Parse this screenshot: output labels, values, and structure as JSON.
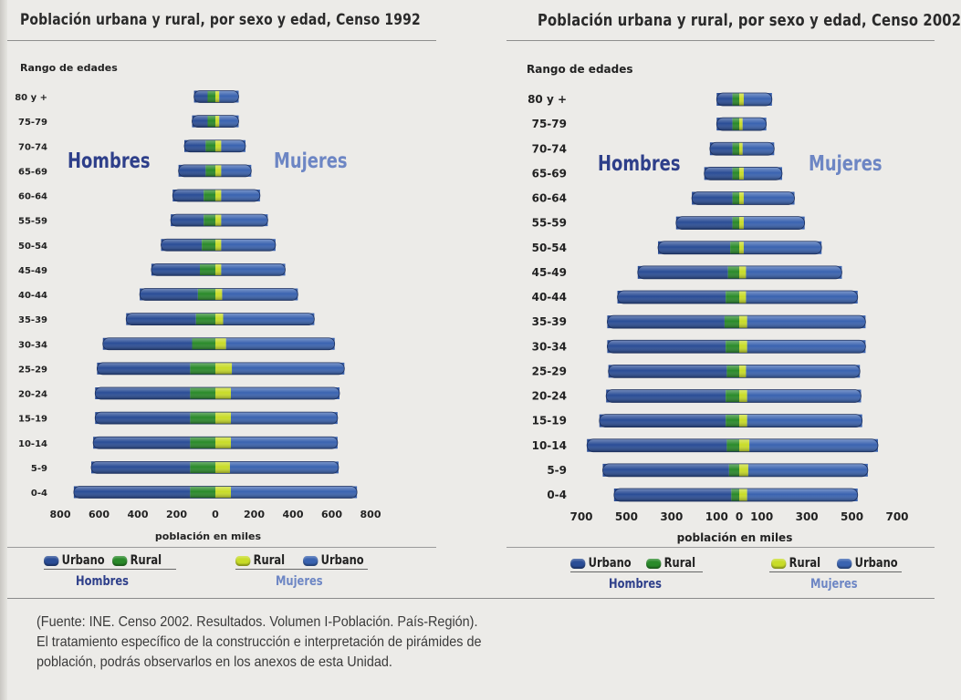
{
  "colors": {
    "hombres_urbano": "#2a4d96",
    "hombres_rural": "#2a8a2a",
    "mujeres_rural": "#c8dc28",
    "mujeres_urbano": "#3a63b0",
    "hombres_label": "#2e3f8a",
    "mujeres_label": "#6d86c4"
  },
  "chart_data": [
    {
      "type": "bar",
      "title": "Población urbana y rural, por sexo y edad, Censo 1992",
      "ylabel": "Rango de edades",
      "xlabel": "población en miles",
      "xlim": [
        -800,
        800
      ],
      "xticks": [
        -800,
        -600,
        -400,
        -200,
        0,
        200,
        400,
        600,
        800
      ],
      "xtick_labels": [
        "800",
        "600",
        "400",
        "200",
        "0",
        "200",
        "400",
        "600",
        "800"
      ],
      "side_labels": {
        "left": "Hombres",
        "right": "Mujeres"
      },
      "categories": [
        "0-4",
        "5-9",
        "10-14",
        "15-19",
        "20-24",
        "25-29",
        "30-34",
        "35-39",
        "40-44",
        "45-49",
        "50-54",
        "55-59",
        "60-64",
        "65-69",
        "70-74",
        "75-79",
        "80 y +"
      ],
      "series": [
        {
          "name": "Urbano",
          "group": "Hombres",
          "values": [
            600,
            510,
            500,
            490,
            490,
            480,
            460,
            360,
            300,
            250,
            210,
            170,
            160,
            140,
            110,
            80,
            70
          ]
        },
        {
          "name": "Rural",
          "group": "Hombres",
          "values": [
            130,
            130,
            130,
            130,
            130,
            130,
            120,
            100,
            90,
            80,
            70,
            60,
            60,
            50,
            50,
            40,
            40
          ]
        },
        {
          "name": "Rural",
          "group": "Mujeres",
          "values": [
            80,
            75,
            80,
            80,
            80,
            85,
            55,
            40,
            35,
            30,
            30,
            30,
            30,
            30,
            30,
            20,
            20
          ]
        },
        {
          "name": "Urbano",
          "group": "Mujeres",
          "values": [
            650,
            560,
            550,
            550,
            560,
            580,
            560,
            470,
            390,
            330,
            280,
            240,
            200,
            155,
            125,
            100,
            100
          ]
        }
      ]
    },
    {
      "type": "bar",
      "title": "Población urbana y rural, por sexo y edad, Censo 2002",
      "ylabel": "Rango de edades",
      "xlabel": "población en miles",
      "xlim": [
        -700,
        700
      ],
      "xticks": [
        -700,
        -500,
        -300,
        -100,
        0,
        100,
        300,
        500,
        700
      ],
      "xtick_labels": [
        "700",
        "500",
        "300",
        "100",
        "0",
        "100",
        "300",
        "500",
        "700"
      ],
      "side_labels": {
        "left": "Hombres",
        "right": "Mujeres"
      },
      "categories": [
        "0-4",
        "5-9",
        "10-14",
        "15-19",
        "20-24",
        "25-29",
        "30-34",
        "35-39",
        "40-44",
        "45-49",
        "50-54",
        "55-59",
        "60-64",
        "65-69",
        "70-74",
        "75-79",
        "80 y +"
      ],
      "series": [
        {
          "name": "Urbano",
          "group": "Hombres",
          "values": [
            520,
            560,
            620,
            560,
            530,
            525,
            525,
            520,
            480,
            400,
            320,
            250,
            180,
            125,
            100,
            70,
            70
          ]
        },
        {
          "name": "Rural",
          "group": "Hombres",
          "values": [
            35,
            45,
            55,
            60,
            60,
            55,
            60,
            65,
            60,
            50,
            40,
            30,
            30,
            30,
            30,
            30,
            30
          ]
        },
        {
          "name": "Rural",
          "group": "Mujeres",
          "values": [
            35,
            40,
            45,
            35,
            35,
            30,
            35,
            35,
            30,
            30,
            20,
            20,
            20,
            20,
            15,
            15,
            20
          ]
        },
        {
          "name": "Urbano",
          "group": "Mujeres",
          "values": [
            490,
            530,
            570,
            510,
            505,
            505,
            525,
            525,
            495,
            425,
            345,
            270,
            225,
            170,
            140,
            105,
            125
          ]
        }
      ]
    }
  ],
  "legend": {
    "hombres_urbano": "Urbano",
    "hombres_rural": "Rural",
    "mujeres_rural": "Rural",
    "mujeres_urbano": "Urbano",
    "hombres_group": "Hombres",
    "mujeres_group": "Mujeres"
  },
  "source_note": {
    "line1": "(Fuente: INE. Censo 2002. Resultados. Volumen I-Población. País-Región).",
    "line2": "El tratamiento específico de la construcción e interpretación de pirámides de",
    "line3": "población, podrás observarlos en los anexos de esta Unidad."
  }
}
